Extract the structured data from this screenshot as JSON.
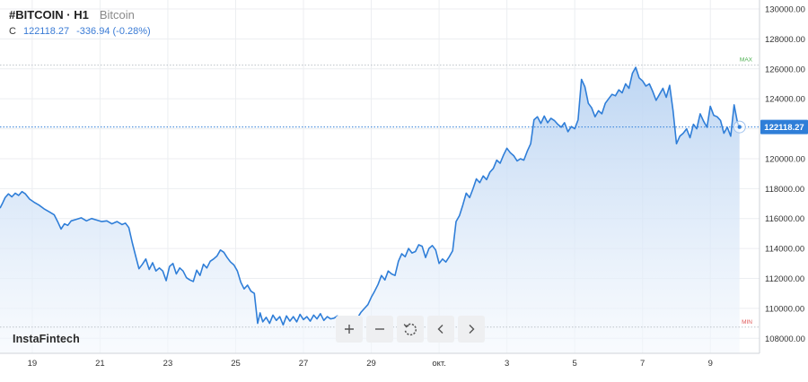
{
  "header": {
    "symbol": "#BITCOIN · H1",
    "description": "Bitcoin",
    "close_label": "C",
    "close_value": "122118.27",
    "change": "-336.94 (-0.28%)"
  },
  "brand": "InstaFintech",
  "controls": [
    {
      "name": "zoom-in-button",
      "icon": "plus-icon"
    },
    {
      "name": "zoom-out-button",
      "icon": "minus-icon"
    },
    {
      "name": "reset-button",
      "icon": "reset-icon"
    },
    {
      "name": "scroll-left-button",
      "icon": "chevron-left-icon"
    },
    {
      "name": "scroll-right-button",
      "icon": "chevron-right-icon"
    }
  ],
  "colors": {
    "line": "#2f7ed8",
    "area_top": "#b9d3f2",
    "area_bottom": "#f4f8fd",
    "price_badge": "#2f7ed8",
    "max": "#4caf50",
    "min": "#e05a5a",
    "grid": "#eceef1"
  },
  "chart_data": {
    "type": "area",
    "x_unit": "days since Sep 18",
    "x_ticks": [
      {
        "label": "19",
        "x": 1
      },
      {
        "label": "21",
        "x": 3
      },
      {
        "label": "23",
        "x": 5
      },
      {
        "label": "25",
        "x": 7
      },
      {
        "label": "27",
        "x": 9
      },
      {
        "label": "29",
        "x": 11
      },
      {
        "label": "окт.",
        "x": 13
      },
      {
        "label": "3",
        "x": 15
      },
      {
        "label": "5",
        "x": 17
      },
      {
        "label": "7",
        "x": 19
      },
      {
        "label": "9",
        "x": 21
      }
    ],
    "y_ticks": [
      "108000.00",
      "110000.00",
      "112000.00",
      "114000.00",
      "116000.00",
      "118000.00",
      "120000.00",
      "122000.00",
      "124000.00",
      "126000.00",
      "128000.00",
      "130000.00"
    ],
    "ylim": [
      107000,
      130600
    ],
    "xlim": [
      0.05,
      22.45
    ],
    "current_price": 122118.27,
    "current_price_label": "122118.27",
    "max_label": "MAX",
    "max_value": 126250,
    "min_label": "MIN",
    "min_value": 108750,
    "points": [
      [
        0.05,
        116700
      ],
      [
        0.13,
        117050
      ],
      [
        0.2,
        117400
      ],
      [
        0.3,
        117650
      ],
      [
        0.4,
        117450
      ],
      [
        0.5,
        117700
      ],
      [
        0.6,
        117550
      ],
      [
        0.7,
        117800
      ],
      [
        0.8,
        117650
      ],
      [
        0.92,
        117300
      ],
      [
        1.05,
        117100
      ],
      [
        1.2,
        116900
      ],
      [
        1.35,
        116650
      ],
      [
        1.5,
        116450
      ],
      [
        1.65,
        116250
      ],
      [
        1.75,
        115800
      ],
      [
        1.85,
        115300
      ],
      [
        1.95,
        115650
      ],
      [
        2.05,
        115550
      ],
      [
        2.15,
        115850
      ],
      [
        2.3,
        115950
      ],
      [
        2.45,
        116050
      ],
      [
        2.6,
        115850
      ],
      [
        2.75,
        116000
      ],
      [
        2.9,
        115900
      ],
      [
        3.05,
        115800
      ],
      [
        3.2,
        115850
      ],
      [
        3.35,
        115650
      ],
      [
        3.5,
        115800
      ],
      [
        3.65,
        115600
      ],
      [
        3.75,
        115700
      ],
      [
        3.85,
        115400
      ],
      [
        3.95,
        114400
      ],
      [
        4.05,
        113500
      ],
      [
        4.15,
        112650
      ],
      [
        4.25,
        112950
      ],
      [
        4.35,
        113300
      ],
      [
        4.45,
        112600
      ],
      [
        4.55,
        113050
      ],
      [
        4.65,
        112500
      ],
      [
        4.75,
        112700
      ],
      [
        4.85,
        112500
      ],
      [
        4.95,
        111850
      ],
      [
        5.05,
        112800
      ],
      [
        5.15,
        113000
      ],
      [
        5.25,
        112300
      ],
      [
        5.35,
        112700
      ],
      [
        5.45,
        112500
      ],
      [
        5.55,
        112050
      ],
      [
        5.65,
        111900
      ],
      [
        5.75,
        111800
      ],
      [
        5.85,
        112550
      ],
      [
        5.95,
        112200
      ],
      [
        6.05,
        112950
      ],
      [
        6.15,
        112700
      ],
      [
        6.25,
        113150
      ],
      [
        6.35,
        113300
      ],
      [
        6.45,
        113500
      ],
      [
        6.55,
        113900
      ],
      [
        6.65,
        113750
      ],
      [
        6.75,
        113400
      ],
      [
        6.85,
        113100
      ],
      [
        6.95,
        112900
      ],
      [
        7.05,
        112500
      ],
      [
        7.15,
        111750
      ],
      [
        7.25,
        111300
      ],
      [
        7.35,
        111550
      ],
      [
        7.45,
        111150
      ],
      [
        7.55,
        111000
      ],
      [
        7.65,
        109000
      ],
      [
        7.72,
        109700
      ],
      [
        7.8,
        109100
      ],
      [
        7.9,
        109400
      ],
      [
        8.0,
        109000
      ],
      [
        8.1,
        109550
      ],
      [
        8.2,
        109200
      ],
      [
        8.3,
        109450
      ],
      [
        8.4,
        108900
      ],
      [
        8.5,
        109500
      ],
      [
        8.6,
        109150
      ],
      [
        8.7,
        109450
      ],
      [
        8.8,
        109100
      ],
      [
        8.9,
        109600
      ],
      [
        9.0,
        109250
      ],
      [
        9.1,
        109450
      ],
      [
        9.2,
        109150
      ],
      [
        9.3,
        109550
      ],
      [
        9.4,
        109300
      ],
      [
        9.5,
        109650
      ],
      [
        9.6,
        109200
      ],
      [
        9.7,
        109450
      ],
      [
        9.8,
        109300
      ],
      [
        9.9,
        109350
      ],
      [
        10.0,
        109500
      ],
      [
        10.1,
        109250
      ],
      [
        10.2,
        109400
      ],
      [
        10.3,
        109300
      ],
      [
        10.4,
        109450
      ],
      [
        10.5,
        109300
      ],
      [
        10.6,
        109400
      ],
      [
        10.7,
        109750
      ],
      [
        10.8,
        110000
      ],
      [
        10.9,
        110250
      ],
      [
        11.0,
        110750
      ],
      [
        11.1,
        111150
      ],
      [
        11.2,
        111600
      ],
      [
        11.3,
        112200
      ],
      [
        11.4,
        111900
      ],
      [
        11.5,
        112500
      ],
      [
        11.6,
        112300
      ],
      [
        11.7,
        112200
      ],
      [
        11.8,
        113150
      ],
      [
        11.9,
        113650
      ],
      [
        12.0,
        113450
      ],
      [
        12.1,
        114000
      ],
      [
        12.2,
        113700
      ],
      [
        12.3,
        113800
      ],
      [
        12.4,
        114250
      ],
      [
        12.5,
        114150
      ],
      [
        12.6,
        113400
      ],
      [
        12.7,
        114000
      ],
      [
        12.8,
        114200
      ],
      [
        12.9,
        113900
      ],
      [
        13.0,
        113000
      ],
      [
        13.1,
        113300
      ],
      [
        13.2,
        113100
      ],
      [
        13.3,
        113450
      ],
      [
        13.4,
        113850
      ],
      [
        13.5,
        115800
      ],
      [
        13.6,
        116200
      ],
      [
        13.7,
        116900
      ],
      [
        13.8,
        117700
      ],
      [
        13.9,
        117400
      ],
      [
        14.0,
        118000
      ],
      [
        14.1,
        118650
      ],
      [
        14.2,
        118400
      ],
      [
        14.3,
        118850
      ],
      [
        14.4,
        118600
      ],
      [
        14.5,
        119100
      ],
      [
        14.6,
        119350
      ],
      [
        14.7,
        119900
      ],
      [
        14.8,
        119700
      ],
      [
        14.9,
        120250
      ],
      [
        15.0,
        120700
      ],
      [
        15.1,
        120400
      ],
      [
        15.2,
        120200
      ],
      [
        15.3,
        119850
      ],
      [
        15.4,
        120000
      ],
      [
        15.5,
        119900
      ],
      [
        15.6,
        120500
      ],
      [
        15.7,
        121000
      ],
      [
        15.8,
        122600
      ],
      [
        15.9,
        122800
      ],
      [
        16.0,
        122350
      ],
      [
        16.1,
        122850
      ],
      [
        16.2,
        122400
      ],
      [
        16.3,
        122700
      ],
      [
        16.4,
        122550
      ],
      [
        16.5,
        122300
      ],
      [
        16.6,
        122100
      ],
      [
        16.7,
        122400
      ],
      [
        16.8,
        121800
      ],
      [
        16.9,
        122150
      ],
      [
        17.0,
        122000
      ],
      [
        17.1,
        122600
      ],
      [
        17.2,
        125300
      ],
      [
        17.3,
        124800
      ],
      [
        17.4,
        123700
      ],
      [
        17.5,
        123400
      ],
      [
        17.6,
        122800
      ],
      [
        17.7,
        123200
      ],
      [
        17.8,
        123000
      ],
      [
        17.9,
        123700
      ],
      [
        18.0,
        124000
      ],
      [
        18.1,
        124300
      ],
      [
        18.2,
        124200
      ],
      [
        18.3,
        124600
      ],
      [
        18.4,
        124400
      ],
      [
        18.5,
        125000
      ],
      [
        18.6,
        124700
      ],
      [
        18.7,
        125700
      ],
      [
        18.8,
        126100
      ],
      [
        18.9,
        125400
      ],
      [
        19.0,
        125200
      ],
      [
        19.1,
        124850
      ],
      [
        19.2,
        125000
      ],
      [
        19.3,
        124500
      ],
      [
        19.4,
        123900
      ],
      [
        19.5,
        124300
      ],
      [
        19.6,
        124700
      ],
      [
        19.7,
        124100
      ],
      [
        19.8,
        124900
      ],
      [
        19.9,
        123200
      ],
      [
        20.0,
        121000
      ],
      [
        20.1,
        121500
      ],
      [
        20.2,
        121700
      ],
      [
        20.3,
        122000
      ],
      [
        20.4,
        121400
      ],
      [
        20.5,
        122300
      ],
      [
        20.6,
        122000
      ],
      [
        20.7,
        123000
      ],
      [
        20.8,
        122500
      ],
      [
        20.9,
        122100
      ],
      [
        21.0,
        123500
      ],
      [
        21.1,
        122900
      ],
      [
        21.2,
        122800
      ],
      [
        21.3,
        122550
      ],
      [
        21.4,
        121700
      ],
      [
        21.5,
        122100
      ],
      [
        21.6,
        121500
      ],
      [
        21.7,
        123600
      ],
      [
        21.8,
        122400
      ],
      [
        21.86,
        122118
      ]
    ]
  }
}
